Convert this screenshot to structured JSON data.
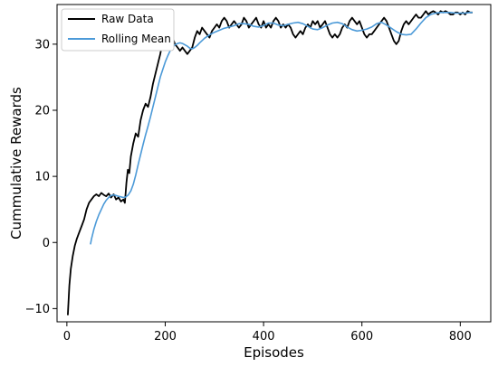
{
  "chart_data": {
    "type": "line",
    "title": "",
    "xlabel": "Episodes",
    "ylabel": "Cummulative Rewards",
    "xlim": [
      -20,
      862
    ],
    "ylim": [
      -12,
      36
    ],
    "xticks": [
      0,
      200,
      400,
      600,
      800
    ],
    "yticks": [
      -10,
      0,
      10,
      20,
      30
    ],
    "grid": false,
    "legend_position": "upper-left",
    "series": [
      {
        "name": "Raw Data",
        "color": "#000000",
        "x": [
          2,
          5,
          8,
          12,
          16,
          20,
          25,
          30,
          35,
          40,
          45,
          50,
          55,
          60,
          65,
          70,
          75,
          80,
          85,
          90,
          95,
          100,
          105,
          110,
          115,
          118,
          121,
          124,
          127,
          130,
          135,
          140,
          145,
          150,
          155,
          160,
          165,
          170,
          175,
          180,
          185,
          190,
          195,
          200,
          205,
          210,
          215,
          220,
          225,
          230,
          235,
          240,
          245,
          250,
          255,
          260,
          265,
          270,
          275,
          280,
          285,
          290,
          295,
          300,
          305,
          310,
          315,
          320,
          325,
          330,
          335,
          340,
          345,
          350,
          355,
          360,
          365,
          370,
          375,
          380,
          385,
          390,
          395,
          400,
          405,
          410,
          415,
          420,
          425,
          430,
          435,
          440,
          445,
          450,
          455,
          460,
          465,
          470,
          475,
          480,
          485,
          490,
          495,
          500,
          505,
          510,
          515,
          520,
          525,
          530,
          535,
          540,
          545,
          550,
          555,
          560,
          565,
          570,
          575,
          580,
          585,
          590,
          595,
          600,
          605,
          610,
          615,
          620,
          625,
          630,
          635,
          640,
          645,
          650,
          655,
          660,
          665,
          670,
          675,
          680,
          685,
          690,
          695,
          700,
          705,
          710,
          715,
          720,
          725,
          730,
          735,
          740,
          745,
          750,
          755,
          760,
          765,
          770,
          775,
          780,
          785,
          790,
          795,
          800,
          805,
          810,
          815,
          820,
          825
        ],
        "y": [
          -11.0,
          -6.5,
          -4.0,
          -2.0,
          -0.5,
          0.5,
          1.5,
          2.5,
          3.5,
          5.0,
          6.0,
          6.5,
          7.0,
          7.3,
          7.0,
          7.5,
          7.2,
          7.0,
          7.4,
          6.8,
          7.3,
          6.5,
          6.8,
          6.2,
          6.5,
          6.0,
          9.0,
          11.0,
          10.5,
          13.0,
          15.0,
          16.5,
          16.0,
          18.5,
          20.0,
          21.0,
          20.5,
          22.0,
          24.0,
          25.5,
          27.0,
          28.5,
          30.5,
          31.0,
          31.0,
          30.5,
          31.0,
          30.0,
          29.5,
          29.0,
          29.5,
          29.0,
          28.5,
          29.0,
          29.5,
          31.0,
          32.0,
          31.5,
          32.5,
          32.0,
          31.5,
          31.0,
          32.0,
          32.5,
          33.0,
          32.5,
          33.5,
          34.0,
          33.5,
          32.5,
          33.0,
          33.5,
          33.0,
          32.5,
          33.0,
          34.0,
          33.5,
          32.5,
          33.0,
          33.5,
          34.0,
          33.0,
          32.5,
          33.5,
          32.5,
          33.0,
          32.5,
          33.5,
          34.0,
          33.5,
          32.5,
          33.0,
          32.5,
          33.0,
          32.5,
          31.5,
          31.0,
          31.5,
          32.0,
          31.5,
          32.5,
          33.0,
          32.5,
          33.5,
          33.0,
          33.5,
          32.5,
          33.0,
          33.5,
          32.5,
          31.5,
          31.0,
          31.5,
          31.0,
          31.5,
          32.5,
          33.0,
          32.5,
          33.5,
          34.0,
          33.5,
          33.0,
          33.5,
          32.5,
          31.5,
          31.0,
          31.5,
          31.5,
          32.0,
          32.5,
          33.0,
          33.5,
          34.0,
          33.5,
          32.5,
          31.5,
          30.5,
          30.0,
          30.5,
          32.0,
          33.0,
          33.5,
          33.0,
          33.5,
          34.0,
          34.5,
          34.0,
          34.0,
          34.5,
          35.0,
          34.5,
          34.8,
          35.0,
          34.8,
          34.5,
          35.0,
          34.8,
          35.0,
          34.8,
          34.5,
          34.5,
          34.8,
          34.8,
          34.5,
          34.8,
          34.5,
          35.0,
          34.8,
          34.8
        ]
      },
      {
        "name": "Rolling Mean",
        "color": "#4c9ad8",
        "x": [
          48,
          50,
          55,
          60,
          65,
          70,
          75,
          80,
          85,
          90,
          95,
          100,
          105,
          110,
          115,
          120,
          125,
          130,
          135,
          140,
          145,
          150,
          155,
          160,
          165,
          170,
          175,
          180,
          185,
          190,
          195,
          200,
          205,
          210,
          215,
          220,
          225,
          230,
          235,
          240,
          245,
          250,
          255,
          260,
          265,
          270,
          280,
          290,
          300,
          310,
          320,
          330,
          340,
          350,
          360,
          370,
          380,
          390,
          400,
          410,
          420,
          430,
          440,
          450,
          460,
          470,
          480,
          490,
          500,
          510,
          520,
          530,
          540,
          550,
          560,
          570,
          580,
          590,
          600,
          610,
          620,
          630,
          640,
          650,
          660,
          670,
          680,
          690,
          700,
          710,
          720,
          730,
          740,
          750,
          760,
          770,
          780,
          790,
          800,
          810,
          820,
          825
        ],
        "y": [
          -0.3,
          0.5,
          2.0,
          3.2,
          4.2,
          5.0,
          5.8,
          6.4,
          6.8,
          7.1,
          7.2,
          7.1,
          7.0,
          6.9,
          6.8,
          6.9,
          7.2,
          7.8,
          8.8,
          10.2,
          11.8,
          13.3,
          14.8,
          16.3,
          17.6,
          19.0,
          20.5,
          22.0,
          23.5,
          25.0,
          26.2,
          27.3,
          28.2,
          29.0,
          29.5,
          29.9,
          30.1,
          30.2,
          30.1,
          29.9,
          29.7,
          29.4,
          29.3,
          29.5,
          29.8,
          30.2,
          30.9,
          31.4,
          31.8,
          32.1,
          32.4,
          32.6,
          32.8,
          33.1,
          33.1,
          33.0,
          32.7,
          32.6,
          32.8,
          33.2,
          33.2,
          32.9,
          32.8,
          33.0,
          33.2,
          33.3,
          33.1,
          32.7,
          32.3,
          32.2,
          32.5,
          32.9,
          33.2,
          33.3,
          33.1,
          32.6,
          32.2,
          32.0,
          32.1,
          32.3,
          32.6,
          33.1,
          33.3,
          32.9,
          32.4,
          31.9,
          31.5,
          31.4,
          31.5,
          32.3,
          33.2,
          34.0,
          34.5,
          34.7,
          34.8,
          34.8,
          34.8,
          34.7,
          34.7,
          34.7,
          34.8,
          34.8
        ]
      }
    ]
  }
}
